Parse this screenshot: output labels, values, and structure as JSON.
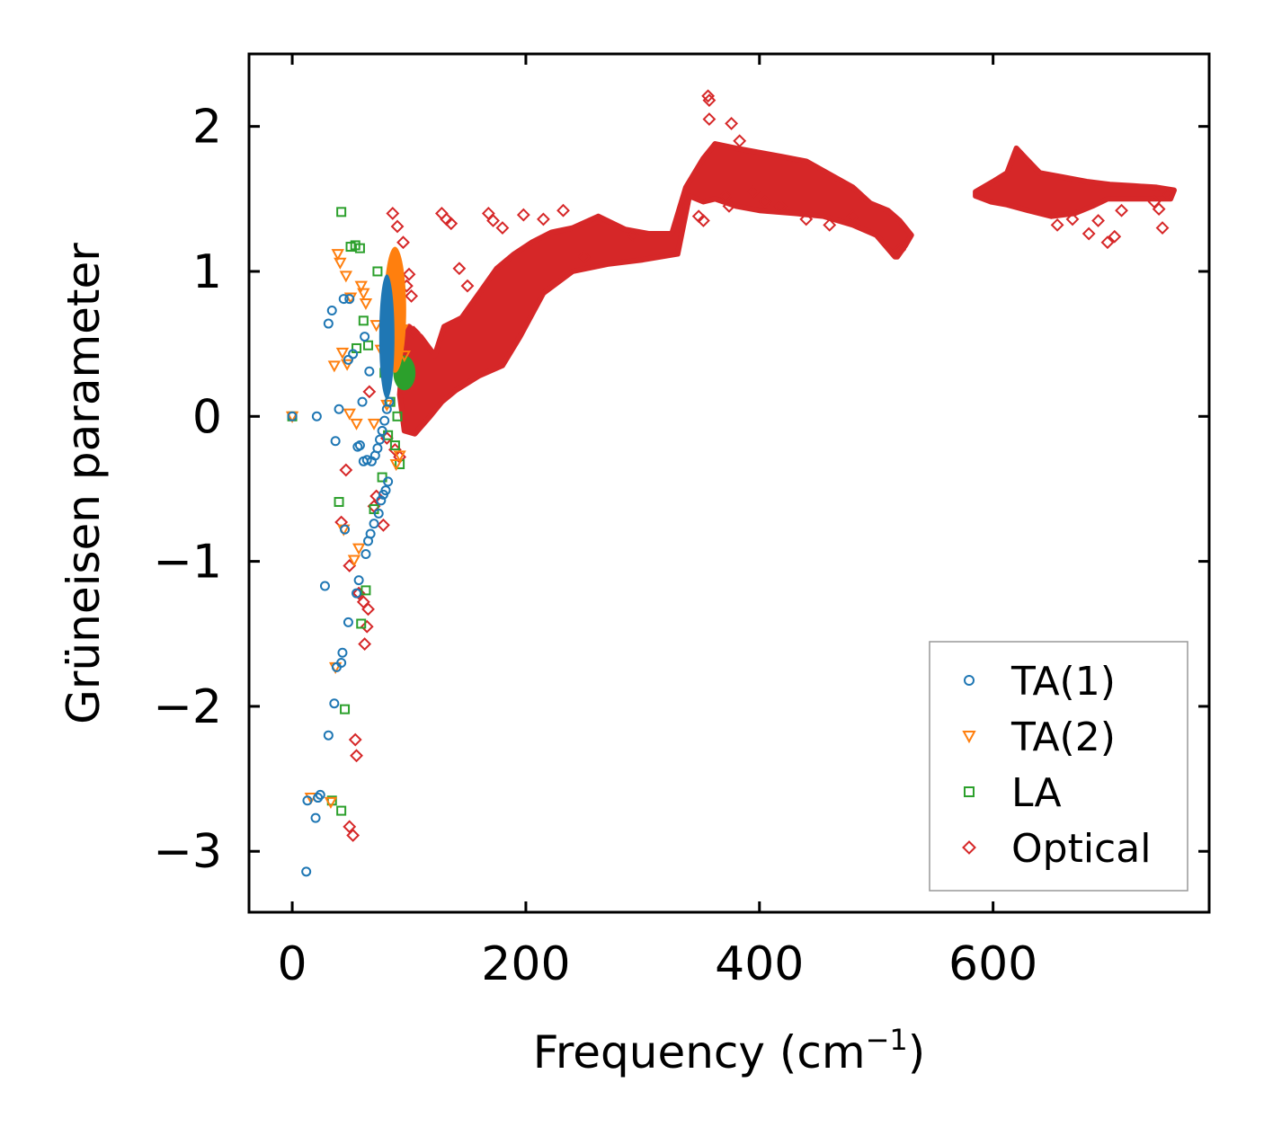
{
  "chart_data": {
    "type": "scatter",
    "title": "",
    "xlabel": "Frequency (cm",
    "xlabel_sup": "−1",
    "xlabel_close": ")",
    "ylabel": "Grüneisen parameter",
    "xlim": [
      -37,
      785
    ],
    "ylim": [
      -3.42,
      2.5
    ],
    "x_ticks": [
      0,
      200,
      400,
      600
    ],
    "x_tick_labels": [
      "0",
      "200",
      "400",
      "600"
    ],
    "y_ticks": [
      -3,
      -2,
      -1,
      0,
      1,
      2
    ],
    "y_tick_labels": [
      "−3",
      "−2",
      "−1",
      "0",
      "1",
      "2"
    ],
    "grid": false,
    "legend_position": "bottom-right",
    "series": [
      {
        "name": "TA(1)",
        "marker": "circle",
        "color": "#1f77b4",
        "points": [
          [
            0,
            0
          ],
          [
            12,
            -3.14
          ],
          [
            13,
            -2.65
          ],
          [
            20,
            -2.77
          ],
          [
            21,
            0
          ],
          [
            22,
            -2.63
          ],
          [
            24,
            -2.61
          ],
          [
            28,
            -1.17
          ],
          [
            31,
            -2.2
          ],
          [
            31,
            0.64
          ],
          [
            34,
            0.73
          ],
          [
            36,
            -1.98
          ],
          [
            37,
            -0.17
          ],
          [
            38,
            -1.73
          ],
          [
            40,
            0.05
          ],
          [
            42,
            -1.7
          ],
          [
            43,
            -1.63
          ],
          [
            44,
            0.81
          ],
          [
            45,
            -0.78
          ],
          [
            48,
            0.39
          ],
          [
            48,
            -1.42
          ],
          [
            49,
            0.81
          ],
          [
            52,
            0.43
          ],
          [
            55,
            -1.22
          ],
          [
            56,
            -0.21
          ],
          [
            57,
            -1.13
          ],
          [
            58,
            -0.2
          ],
          [
            60,
            0.1
          ],
          [
            61,
            -0.31
          ],
          [
            62,
            0.55
          ],
          [
            63,
            -0.95
          ],
          [
            64,
            -0.3
          ],
          [
            65,
            -0.86
          ],
          [
            66,
            0.31
          ],
          [
            67,
            -0.81
          ],
          [
            68,
            -0.31
          ],
          [
            70,
            -0.74
          ],
          [
            71,
            -0.27
          ],
          [
            73,
            -0.22
          ],
          [
            74,
            -0.67
          ],
          [
            75,
            -0.16
          ],
          [
            76,
            -0.58
          ],
          [
            77,
            -0.1
          ],
          [
            78,
            -0.54
          ],
          [
            79,
            -0.03
          ],
          [
            80,
            -0.51
          ],
          [
            81,
            0.05
          ],
          [
            82,
            -0.45
          ],
          [
            83,
            0.1
          ]
        ],
        "dense_band": {
          "x_range": [
            76,
            86
          ],
          "y_range": [
            0.12,
            0.98
          ]
        }
      },
      {
        "name": "TA(2)",
        "marker": "triangle-down",
        "color": "#ff7f0e",
        "points": [
          [
            0,
            0
          ],
          [
            16,
            -2.63
          ],
          [
            33,
            -2.66
          ],
          [
            36,
            0.35
          ],
          [
            37,
            -1.73
          ],
          [
            39,
            1.12
          ],
          [
            41,
            1.06
          ],
          [
            43,
            0.44
          ],
          [
            44,
            -0.78
          ],
          [
            46,
            0.97
          ],
          [
            47,
            0.36
          ],
          [
            49,
            0.02
          ],
          [
            50,
            0.82
          ],
          [
            53,
            -0.99
          ],
          [
            55,
            -0.05
          ],
          [
            57,
            -0.91
          ],
          [
            59,
            0.9
          ],
          [
            61,
            0.85
          ],
          [
            63,
            0.78
          ],
          [
            70,
            -0.05
          ],
          [
            72,
            0.63
          ],
          [
            76,
            0.46
          ],
          [
            81,
            0.08
          ],
          [
            84,
            0.86
          ],
          [
            88,
            0.5
          ],
          [
            89,
            -0.33
          ],
          [
            92,
            -0.27
          ],
          [
            94,
            0.6
          ],
          [
            96,
            0.42
          ]
        ],
        "dense_band": {
          "x_range": [
            80,
            96
          ],
          "y_range": [
            0.3,
            1.17
          ]
        }
      },
      {
        "name": "LA",
        "marker": "square",
        "color": "#2ca02c",
        "points": [
          [
            0,
            0
          ],
          [
            34,
            -2.65
          ],
          [
            40,
            -0.59
          ],
          [
            42,
            1.41
          ],
          [
            42,
            -2.72
          ],
          [
            45,
            -2.02
          ],
          [
            50,
            1.17
          ],
          [
            54,
            1.18
          ],
          [
            55,
            0.47
          ],
          [
            58,
            1.16
          ],
          [
            59,
            -1.43
          ],
          [
            61,
            0.66
          ],
          [
            63,
            -1.2
          ],
          [
            65,
            0.49
          ],
          [
            70,
            -0.64
          ],
          [
            73,
            1.0
          ],
          [
            77,
            -0.42
          ],
          [
            79,
            0.3
          ],
          [
            82,
            -0.13
          ],
          [
            84,
            0.1
          ],
          [
            86,
            0.81
          ],
          [
            88,
            -0.2
          ],
          [
            90,
            0.0
          ],
          [
            92,
            -0.33
          ]
        ],
        "dense_band": {
          "x_range": [
            88,
            104
          ],
          "y_range": [
            0.18,
            0.42
          ]
        }
      },
      {
        "name": "Optical",
        "marker": "diamond",
        "color": "#d62728",
        "points": [
          [
            42,
            -0.73
          ],
          [
            46,
            -0.37
          ],
          [
            49,
            -2.83
          ],
          [
            49,
            -1.03
          ],
          [
            52,
            -2.89
          ],
          [
            54,
            -2.23
          ],
          [
            55,
            -2.34
          ],
          [
            57,
            -1.22
          ],
          [
            61,
            -1.28
          ],
          [
            62,
            -1.57
          ],
          [
            64,
            -1.45
          ],
          [
            65,
            -1.33
          ],
          [
            66,
            0.17
          ],
          [
            70,
            -0.62
          ],
          [
            72,
            -0.55
          ],
          [
            78,
            -0.75
          ],
          [
            81,
            -0.15
          ],
          [
            84,
            0.74
          ],
          [
            86,
            1.4
          ],
          [
            88,
            -0.23
          ],
          [
            90,
            1.31
          ],
          [
            92,
            -0.28
          ],
          [
            95,
            1.2
          ],
          [
            98,
            0.9
          ],
          [
            100,
            0.98
          ],
          [
            102,
            0.83
          ],
          [
            104,
            0.58
          ],
          [
            128,
            1.4
          ],
          [
            132,
            1.36
          ],
          [
            136,
            1.33
          ],
          [
            143,
            1.02
          ],
          [
            150,
            0.9
          ],
          [
            168,
            1.4
          ],
          [
            172,
            1.35
          ],
          [
            180,
            1.3
          ],
          [
            198,
            1.39
          ],
          [
            215,
            1.36
          ],
          [
            232,
            1.42
          ],
          [
            250,
            1.1
          ],
          [
            292,
            1.25
          ],
          [
            348,
            1.38
          ],
          [
            352,
            1.35
          ],
          [
            356,
            2.21
          ],
          [
            357,
            2.18
          ],
          [
            357,
            2.05
          ],
          [
            371,
            1.52
          ],
          [
            374,
            1.45
          ],
          [
            376,
            2.02
          ],
          [
            383,
            1.9
          ],
          [
            395,
            1.55
          ],
          [
            405,
            1.48
          ],
          [
            418,
            1.45
          ],
          [
            440,
            1.36
          ],
          [
            460,
            1.32
          ],
          [
            480,
            1.38
          ],
          [
            520,
            1.15
          ],
          [
            655,
            1.32
          ],
          [
            668,
            1.36
          ],
          [
            682,
            1.26
          ],
          [
            690,
            1.35
          ],
          [
            698,
            1.2
          ],
          [
            704,
            1.24
          ],
          [
            710,
            1.42
          ],
          [
            738,
            1.48
          ],
          [
            742,
            1.43
          ],
          [
            745,
            1.3
          ],
          [
            750,
            1.53
          ]
        ]
      }
    ],
    "optical_band": {
      "upper": [
        [
          100,
          0.62
        ],
        [
          110,
          0.55
        ],
        [
          122,
          0.42
        ],
        [
          130,
          0.62
        ],
        [
          145,
          0.68
        ],
        [
          160,
          0.85
        ],
        [
          175,
          1.02
        ],
        [
          190,
          1.12
        ],
        [
          205,
          1.2
        ],
        [
          222,
          1.27
        ],
        [
          240,
          1.3
        ],
        [
          262,
          1.38
        ],
        [
          285,
          1.29
        ],
        [
          305,
          1.26
        ],
        [
          325,
          1.26
        ],
        [
          337,
          1.58
        ],
        [
          352,
          1.78
        ],
        [
          362,
          1.88
        ],
        [
          380,
          1.85
        ],
        [
          400,
          1.82
        ],
        [
          420,
          1.79
        ],
        [
          440,
          1.76
        ],
        [
          460,
          1.67
        ],
        [
          480,
          1.58
        ],
        [
          495,
          1.47
        ],
        [
          510,
          1.42
        ],
        [
          520,
          1.35
        ],
        [
          530,
          1.25
        ],
        [
          525,
          1.18
        ],
        [
          518,
          1.1
        ]
      ],
      "lower": [
        [
          516,
          1.1
        ],
        [
          500,
          1.25
        ],
        [
          480,
          1.32
        ],
        [
          455,
          1.38
        ],
        [
          430,
          1.4
        ],
        [
          400,
          1.42
        ],
        [
          380,
          1.45
        ],
        [
          362,
          1.5
        ],
        [
          352,
          1.48
        ],
        [
          340,
          1.52
        ],
        [
          330,
          1.12
        ],
        [
          300,
          1.08
        ],
        [
          270,
          1.05
        ],
        [
          240,
          1.0
        ],
        [
          215,
          0.85
        ],
        [
          195,
          0.55
        ],
        [
          180,
          0.35
        ],
        [
          160,
          0.28
        ],
        [
          140,
          0.18
        ],
        [
          128,
          0.1
        ],
        [
          118,
          0.0
        ],
        [
          105,
          -0.12
        ],
        [
          96,
          -0.1
        ],
        [
          92,
          0.15
        ],
        [
          95,
          0.45
        ]
      ],
      "high_upper": [
        [
          585,
          1.55
        ],
        [
          600,
          1.62
        ],
        [
          612,
          1.68
        ],
        [
          620,
          1.85
        ],
        [
          628,
          1.78
        ],
        [
          640,
          1.68
        ],
        [
          660,
          1.65
        ],
        [
          680,
          1.62
        ],
        [
          700,
          1.6
        ],
        [
          720,
          1.59
        ],
        [
          740,
          1.58
        ],
        [
          755,
          1.56
        ]
      ],
      "high_lower": [
        [
          752,
          1.5
        ],
        [
          735,
          1.5
        ],
        [
          715,
          1.5
        ],
        [
          698,
          1.5
        ],
        [
          685,
          1.45
        ],
        [
          670,
          1.4
        ],
        [
          650,
          1.38
        ],
        [
          630,
          1.42
        ],
        [
          612,
          1.46
        ],
        [
          598,
          1.48
        ],
        [
          585,
          1.52
        ]
      ]
    }
  }
}
